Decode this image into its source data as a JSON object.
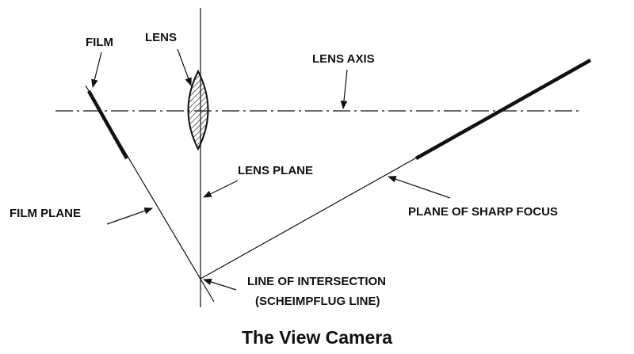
{
  "title": "The View Camera",
  "labels": {
    "film": "FILM",
    "lens": "LENS",
    "lens_axis": "LENS AXIS",
    "lens_plane": "LENS PLANE",
    "film_plane": "FILM PLANE",
    "plane_of_sharp_focus": "PLANE OF SHARP FOCUS",
    "line_of_intersection": "LINE OF INTERSECTION",
    "scheimpflug_line": "(SCHEIMPFLUG LINE)"
  }
}
